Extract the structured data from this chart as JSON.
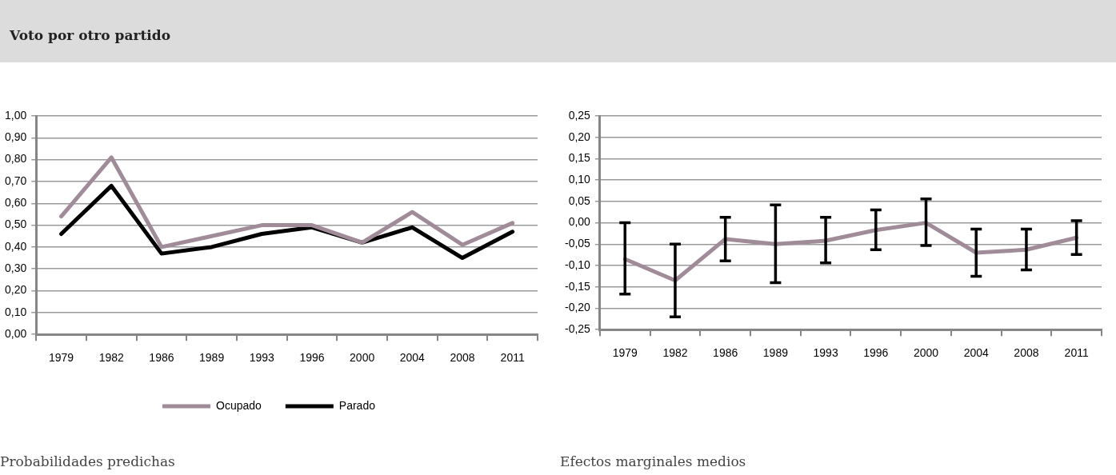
{
  "chart_data": [
    {
      "type": "line",
      "title": "Voto por otro partido",
      "categories": [
        "1979",
        "1982",
        "1986",
        "1989",
        "1993",
        "1996",
        "2000",
        "2004",
        "2008",
        "2011"
      ],
      "series": [
        {
          "name": "Ocupado",
          "color": "#a08c98",
          "values": [
            0.54,
            0.81,
            0.4,
            0.45,
            0.5,
            0.5,
            0.42,
            0.56,
            0.41,
            0.51
          ]
        },
        {
          "name": "Parado",
          "color": "#000000",
          "values": [
            0.46,
            0.68,
            0.37,
            0.4,
            0.46,
            0.49,
            0.42,
            0.49,
            0.35,
            0.47
          ]
        }
      ],
      "ylim": [
        0,
        1
      ],
      "yticks": [
        {
          "value": 0,
          "label": "0,00"
        },
        {
          "value": 0.1,
          "label": "0,10"
        },
        {
          "value": 0.2,
          "label": "0,20"
        },
        {
          "value": 0.3,
          "label": "0,30"
        },
        {
          "value": 0.4,
          "label": "0,40"
        },
        {
          "value": 0.5,
          "label": "0,50"
        },
        {
          "value": 0.6,
          "label": "0,60"
        },
        {
          "value": 0.7,
          "label": "0,70"
        },
        {
          "value": 0.8,
          "label": "0,80"
        },
        {
          "value": 0.9,
          "label": "0,90"
        },
        {
          "value": 1,
          "label": "1,00"
        }
      ],
      "grid": "y",
      "legend": "bottom",
      "marker": "none",
      "line_style": "solid",
      "annotations": [
        "Probabilidades predichas"
      ]
    },
    {
      "type": "line",
      "categories": [
        "1979",
        "1982",
        "1986",
        "1989",
        "1993",
        "1996",
        "2000",
        "2004",
        "2008",
        "2011"
      ],
      "series": [
        {
          "color": "#a08c98",
          "values": [
            -0.085,
            -0.135,
            -0.038,
            -0.05,
            -0.042,
            -0.017,
            0.0,
            -0.07,
            -0.063,
            -0.035
          ],
          "errors": [
            [
              -0.167,
              0.0
            ],
            [
              -0.22,
              -0.05
            ],
            [
              -0.089,
              0.013
            ],
            [
              -0.14,
              0.042
            ],
            [
              -0.094,
              0.013
            ],
            [
              -0.063,
              0.03
            ],
            [
              -0.053,
              0.056
            ],
            [
              -0.125,
              -0.015
            ],
            [
              -0.11,
              -0.015
            ],
            [
              -0.074,
              0.005
            ]
          ]
        }
      ],
      "ylim": [
        -0.25,
        0.25
      ],
      "yticks": [
        {
          "value": -0.25,
          "label": "-0,25"
        },
        {
          "value": -0.2,
          "label": "-0,20"
        },
        {
          "value": -0.15,
          "label": "-0,15"
        },
        {
          "value": -0.1,
          "label": "-0,10"
        },
        {
          "value": -0.05,
          "label": "-0,05"
        },
        {
          "value": 0,
          "label": "0,00"
        },
        {
          "value": 0.05,
          "label": "0,05"
        },
        {
          "value": 0.1,
          "label": "0,10"
        },
        {
          "value": 0.15,
          "label": "0,15"
        },
        {
          "value": 0.2,
          "label": "0,20"
        },
        {
          "value": 0.25,
          "label": "0,25"
        }
      ],
      "grid": "y",
      "marker": "none",
      "line_style": "solid",
      "annotations": [
        "Efectos marginales medios"
      ]
    }
  ]
}
